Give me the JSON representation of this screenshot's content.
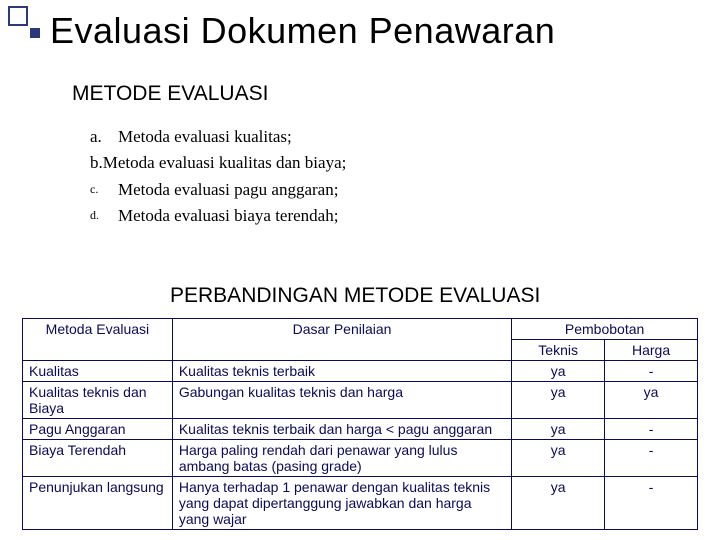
{
  "title": "Evaluasi  Dokumen Penawaran",
  "section1": "METODE EVALUASI",
  "list": [
    {
      "marker": "a.",
      "markerClass": "mk",
      "text": "Metoda evaluasi kualitas;"
    },
    {
      "marker": "b.",
      "markerClass": "mk",
      "text": "Metoda evaluasi kualitas dan biaya;",
      "nogap": true
    },
    {
      "marker": "c.",
      "markerClass": "mk sm",
      "text": "Metoda evaluasi pagu anggaran;"
    },
    {
      "marker": "d.",
      "markerClass": "mk sm",
      "text": "Metoda evaluasi biaya terendah;"
    }
  ],
  "section2": "PERBANDINGAN METODE EVALUASI",
  "table": {
    "head": {
      "col1": "Metoda Evaluasi",
      "col2": "Dasar Penilaian",
      "col3group": "Pembobotan",
      "col3a": "Teknis",
      "col3b": "Harga"
    },
    "rows": [
      {
        "c1": "Kualitas",
        "c2": "Kualitas teknis terbaik",
        "c3": "ya",
        "c4": "-"
      },
      {
        "c1": "Kualitas teknis dan Biaya",
        "c2": "Gabungan kualitas teknis dan harga",
        "c3": "ya",
        "c4": "ya"
      },
      {
        "c1": "Pagu Anggaran",
        "c2": "Kualitas teknis terbaik dan harga < pagu anggaran",
        "c3": "ya",
        "c4": "-"
      },
      {
        "c1": "Biaya Terendah",
        "c2": "Harga paling rendah dari penawar yang lulus ambang batas (pasing grade)",
        "c3": "ya",
        "c4": "-"
      },
      {
        "c1": "Penunjukan langsung",
        "c2": "Hanya terhadap 1 penawar dengan kualitas teknis yang dapat dipertanggung jawabkan dan harga yang wajar",
        "c3": "ya",
        "c4": "-"
      }
    ]
  },
  "colors": {
    "accent": "#2a3a7a",
    "tableText": "#0a0a5a",
    "background": "#ffffff"
  }
}
